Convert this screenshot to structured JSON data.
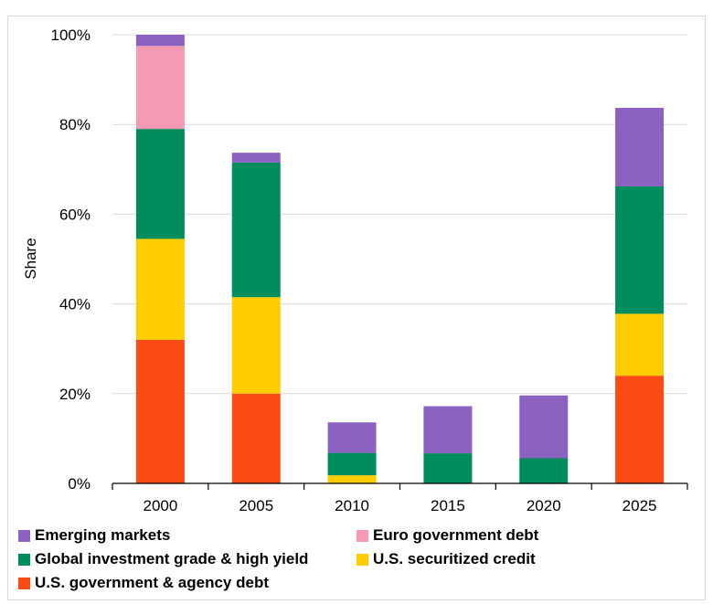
{
  "chart_data": {
    "type": "bar",
    "stacked": true,
    "categories": [
      "2000",
      "2005",
      "2010",
      "2015",
      "2020",
      "2025"
    ],
    "ylabel": "Share",
    "ylim": [
      0,
      100
    ],
    "yticks": [
      "0%",
      "20%",
      "40%",
      "60%",
      "80%",
      "100%"
    ],
    "ytick_values": [
      0,
      20,
      40,
      60,
      80,
      100
    ],
    "grid": true,
    "legend_position": "bottom",
    "series": [
      {
        "name": "U.S. government & agency debt",
        "color": "#fc4a14",
        "values": [
          32,
          20,
          0,
          0,
          0,
          24
        ]
      },
      {
        "name": "U.S. securitized credit",
        "color": "#ffcc00",
        "values": [
          22.5,
          21.5,
          1.8,
          0,
          0,
          13.8
        ]
      },
      {
        "name": "Global investment grade & high yield",
        "color": "#008d5d",
        "values": [
          24.5,
          30,
          5,
          6.7,
          5.6,
          28.4
        ]
      },
      {
        "name": "Euro government debt",
        "color": "#f59ab3",
        "values": [
          18.5,
          0,
          0,
          0,
          0,
          0
        ]
      },
      {
        "name": "Emerging markets",
        "color": "#8c62c0",
        "values": [
          2.5,
          2.2,
          6.8,
          10.5,
          14,
          17.5
        ]
      }
    ]
  },
  "legend": {
    "items": [
      {
        "label": "Emerging markets",
        "color": "#8c62c0"
      },
      {
        "label": "Euro government debt",
        "color": "#f59ab3"
      },
      {
        "label": "Global investment grade & high yield",
        "color": "#008d5d"
      },
      {
        "label": "U.S. securitized credit",
        "color": "#ffcc00"
      },
      {
        "label": "U.S. government & agency debt",
        "color": "#fc4a14"
      }
    ]
  }
}
